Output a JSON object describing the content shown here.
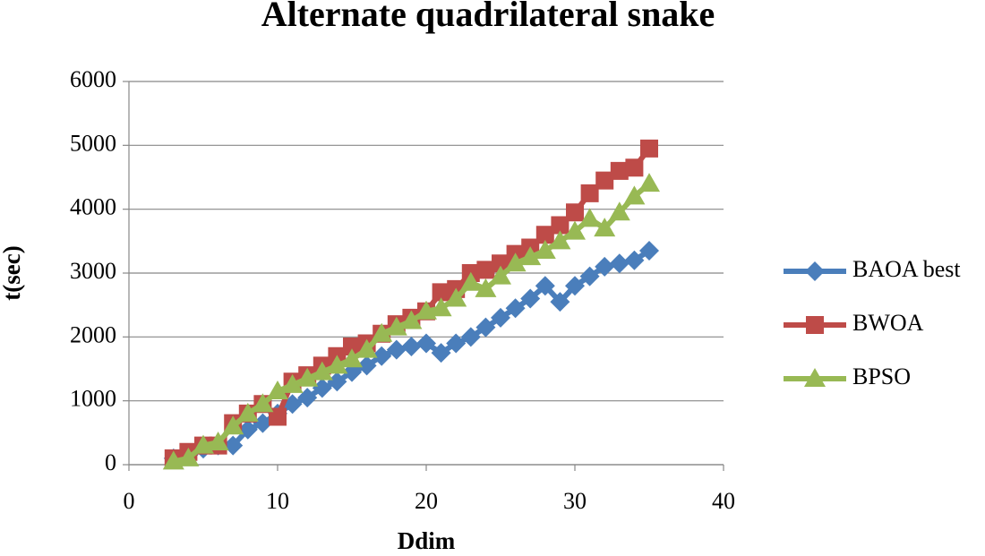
{
  "chart_data": {
    "type": "line",
    "title": "Alternate quadrilateral snake",
    "x_label": "Ddim",
    "y_label": "t(sec)",
    "x": [
      3,
      4,
      5,
      6,
      7,
      8,
      9,
      10,
      11,
      12,
      13,
      14,
      15,
      16,
      17,
      18,
      19,
      20,
      21,
      22,
      23,
      24,
      25,
      26,
      27,
      28,
      29,
      30,
      31,
      32,
      33,
      34,
      35
    ],
    "series": [
      {
        "name": "BAOA best",
        "color": "#4a7ebb",
        "marker": "diamond",
        "values": [
          100,
          150,
          250,
          300,
          300,
          550,
          650,
          800,
          950,
          1050,
          1200,
          1300,
          1450,
          1550,
          1700,
          1800,
          1850,
          1900,
          1750,
          1900,
          2000,
          2150,
          2300,
          2450,
          2600,
          2800,
          2550,
          2800,
          2950,
          3100,
          3150,
          3200,
          3350
        ]
      },
      {
        "name": "BWOA",
        "color": "#be4b48",
        "marker": "square",
        "values": [
          100,
          200,
          300,
          300,
          650,
          800,
          950,
          750,
          1300,
          1400,
          1550,
          1700,
          1850,
          1900,
          2050,
          2200,
          2300,
          2400,
          2700,
          2750,
          3000,
          3050,
          3150,
          3300,
          3400,
          3600,
          3750,
          3950,
          4250,
          4450,
          4600,
          4650,
          4950
        ]
      },
      {
        "name": "BPSO",
        "color": "#98b954",
        "marker": "triangle",
        "values": [
          50,
          100,
          300,
          350,
          600,
          800,
          950,
          1150,
          1250,
          1350,
          1450,
          1550,
          1650,
          1800,
          2050,
          2150,
          2250,
          2400,
          2450,
          2600,
          2850,
          2750,
          2950,
          3150,
          3250,
          3350,
          3500,
          3650,
          3850,
          3700,
          3950,
          4200,
          4400
        ]
      }
    ],
    "xlim": [
      0,
      40
    ],
    "xticks": [
      0,
      10,
      20,
      30,
      40
    ],
    "ylim": [
      0,
      6000
    ],
    "yticks": [
      0,
      1000,
      2000,
      3000,
      4000,
      5000,
      6000
    ],
    "grid": true,
    "legend": "right"
  }
}
